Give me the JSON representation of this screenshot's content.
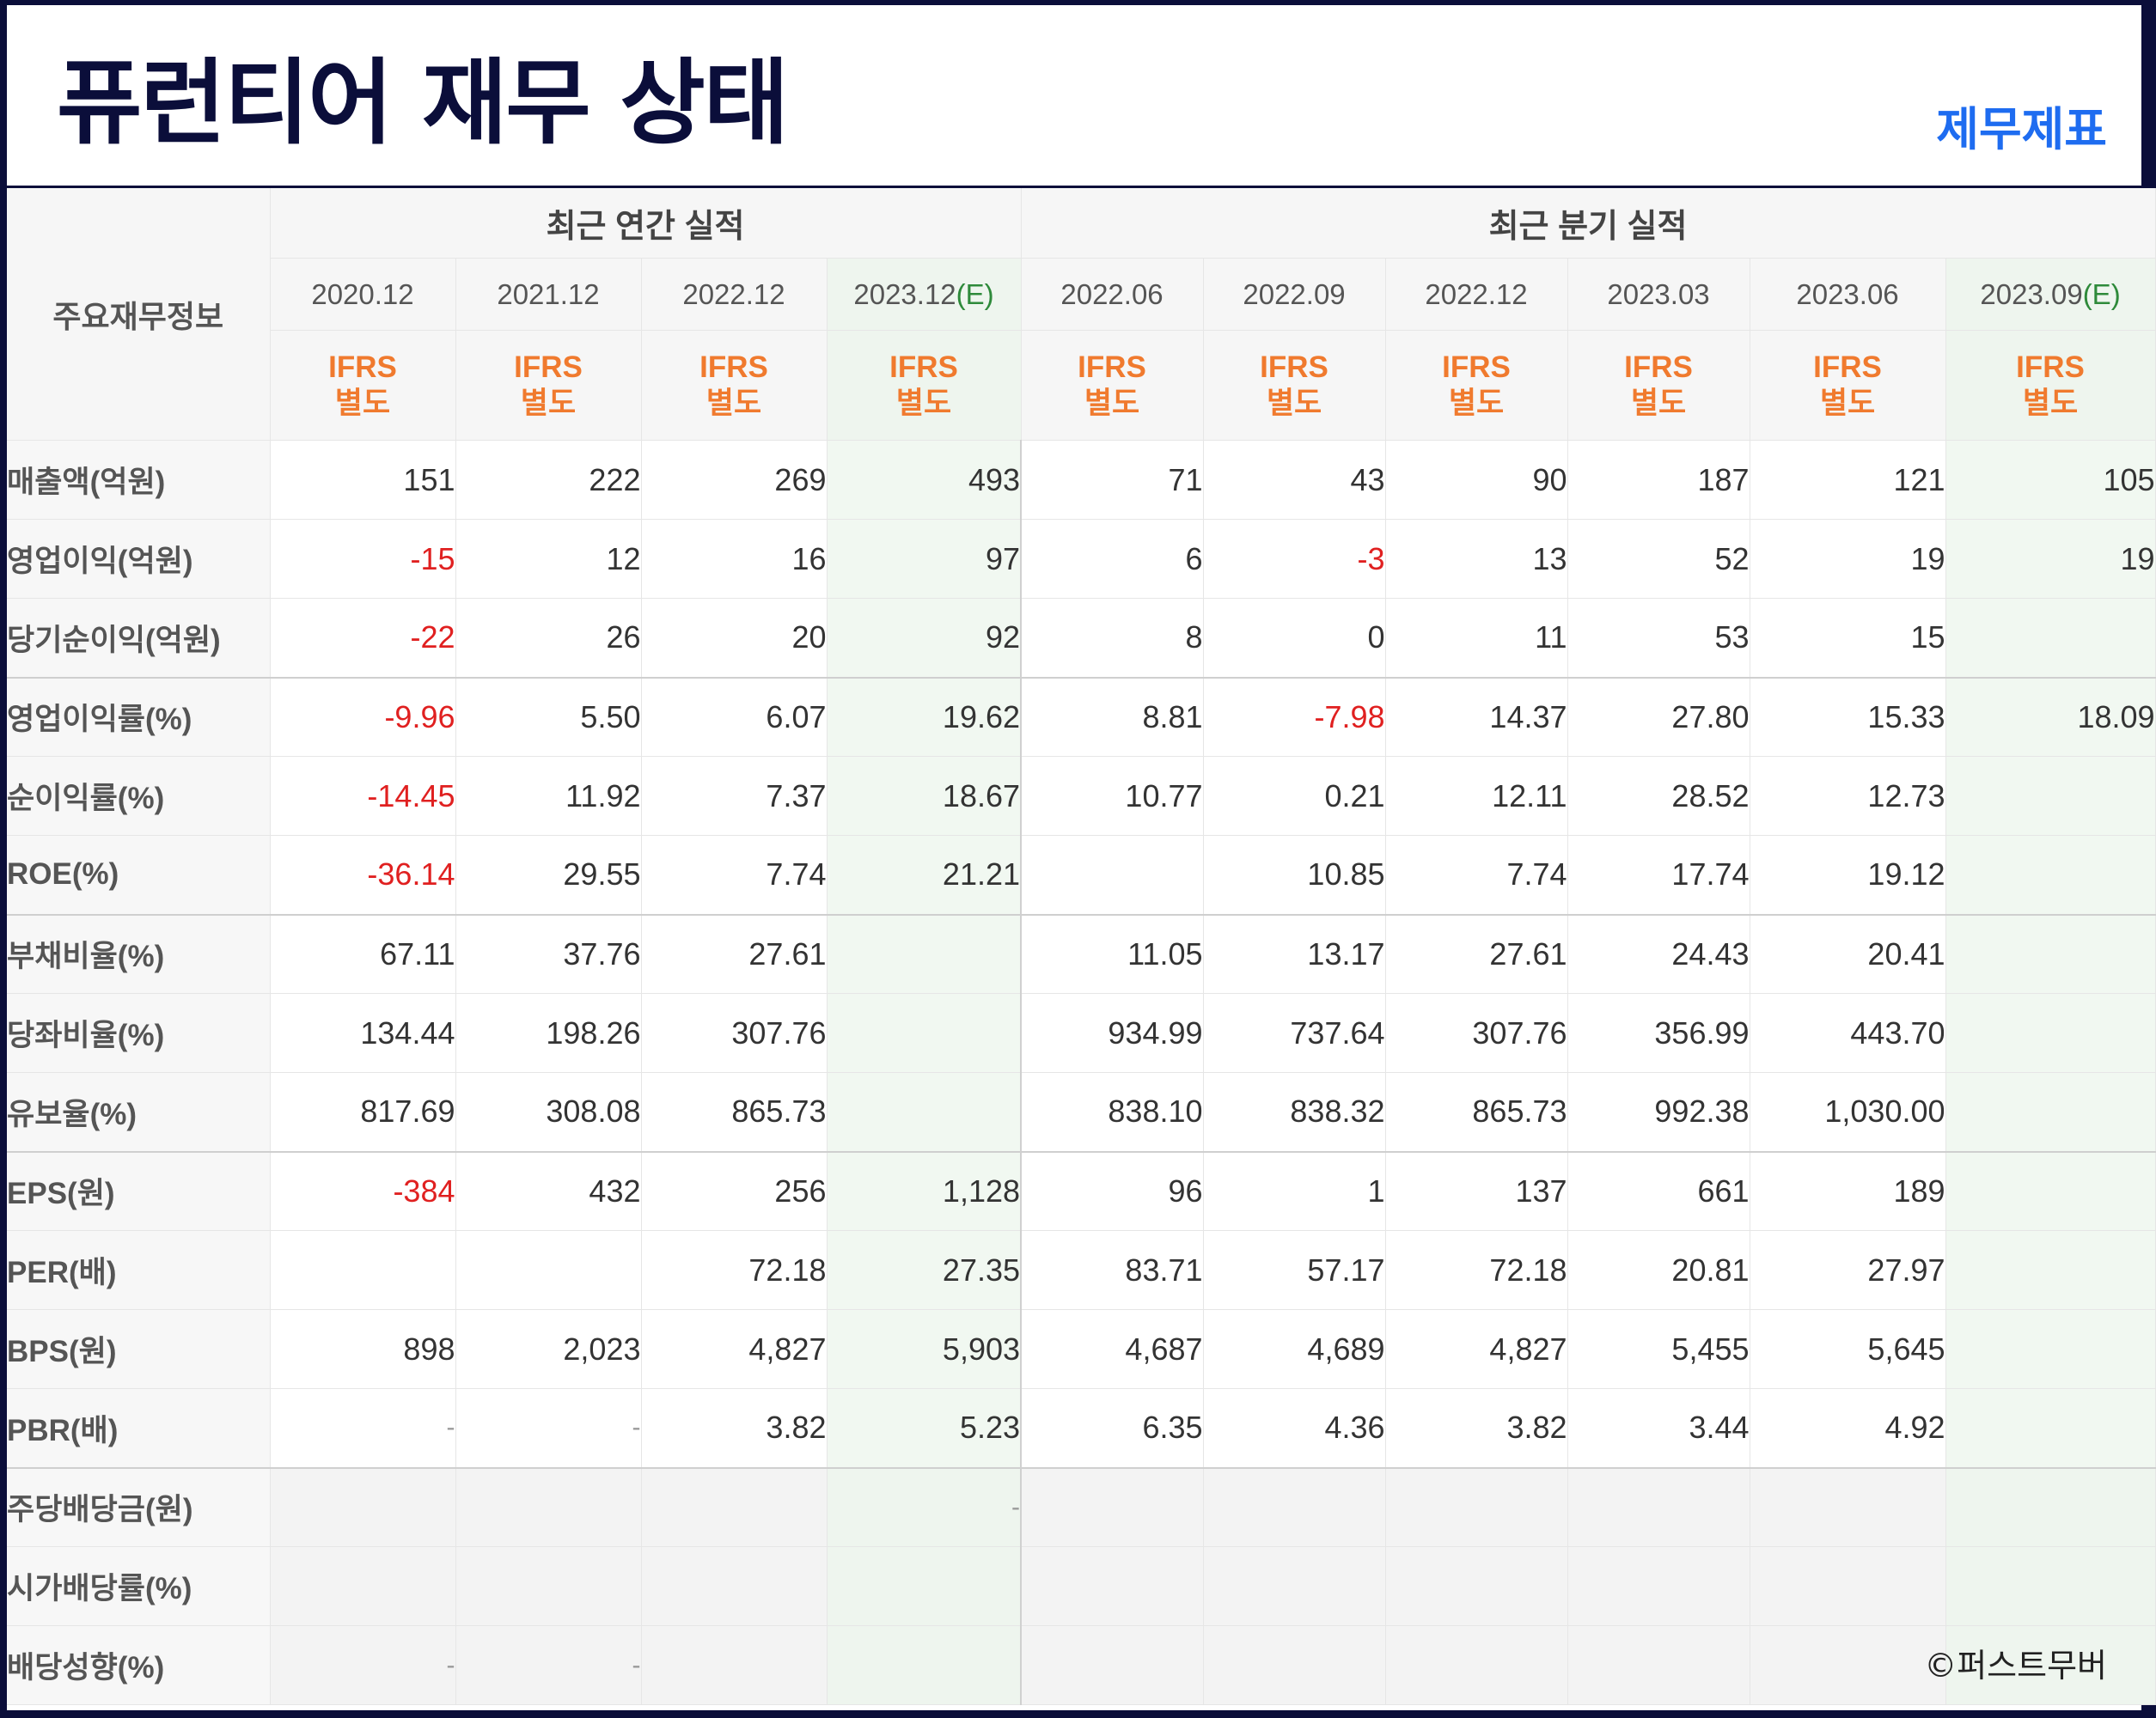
{
  "title": "퓨런티어 재무 상태",
  "brand": "제무제표",
  "copyright": "©퍼스트무버",
  "header": {
    "main_label": "주요재무정보",
    "annual_group": "최근 연간 실적",
    "quarter_group": "최근 분기 실적",
    "estimate_marker": "(E)",
    "type_line1": "IFRS",
    "type_line2": "별도"
  },
  "columns": [
    {
      "date": "2020.12",
      "est": false
    },
    {
      "date": "2021.12",
      "est": false
    },
    {
      "date": "2022.12",
      "est": false
    },
    {
      "date": "2023.12",
      "est": true
    },
    {
      "date": "2022.06",
      "est": false
    },
    {
      "date": "2022.09",
      "est": false
    },
    {
      "date": "2022.12",
      "est": false
    },
    {
      "date": "2023.03",
      "est": false
    },
    {
      "date": "2023.06",
      "est": false
    },
    {
      "date": "2023.09",
      "est": true
    }
  ],
  "rows": [
    {
      "label": "매출액(억원)",
      "values": [
        "151",
        "222",
        "269",
        "493",
        "71",
        "43",
        "90",
        "187",
        "121",
        "105"
      ]
    },
    {
      "label": "영업이익(억원)",
      "values": [
        "-15",
        "12",
        "16",
        "97",
        "6",
        "-3",
        "13",
        "52",
        "19",
        "19"
      ]
    },
    {
      "label": "당기순이익(억원)",
      "values": [
        "-22",
        "26",
        "20",
        "92",
        "8",
        "0",
        "11",
        "53",
        "15",
        ""
      ]
    },
    {
      "label": "영업이익률(%)",
      "values": [
        "-9.96",
        "5.50",
        "6.07",
        "19.62",
        "8.81",
        "-7.98",
        "14.37",
        "27.80",
        "15.33",
        "18.09"
      ]
    },
    {
      "label": "순이익률(%)",
      "values": [
        "-14.45",
        "11.92",
        "7.37",
        "18.67",
        "10.77",
        "0.21",
        "12.11",
        "28.52",
        "12.73",
        ""
      ]
    },
    {
      "label": "ROE(%)",
      "values": [
        "-36.14",
        "29.55",
        "7.74",
        "21.21",
        "",
        "10.85",
        "7.74",
        "17.74",
        "19.12",
        ""
      ]
    },
    {
      "label": "부채비율(%)",
      "values": [
        "67.11",
        "37.76",
        "27.61",
        "",
        "11.05",
        "13.17",
        "27.61",
        "24.43",
        "20.41",
        ""
      ]
    },
    {
      "label": "당좌비율(%)",
      "values": [
        "134.44",
        "198.26",
        "307.76",
        "",
        "934.99",
        "737.64",
        "307.76",
        "356.99",
        "443.70",
        ""
      ]
    },
    {
      "label": "유보율(%)",
      "values": [
        "817.69",
        "308.08",
        "865.73",
        "",
        "838.10",
        "838.32",
        "865.73",
        "992.38",
        "1,030.00",
        ""
      ]
    },
    {
      "label": "EPS(원)",
      "values": [
        "-384",
        "432",
        "256",
        "1,128",
        "96",
        "1",
        "137",
        "661",
        "189",
        ""
      ]
    },
    {
      "label": "PER(배)",
      "values": [
        "",
        "",
        "72.18",
        "27.35",
        "83.71",
        "57.17",
        "72.18",
        "20.81",
        "27.97",
        ""
      ]
    },
    {
      "label": "BPS(원)",
      "values": [
        "898",
        "2,023",
        "4,827",
        "5,903",
        "4,687",
        "4,689",
        "4,827",
        "5,455",
        "5,645",
        ""
      ]
    },
    {
      "label": "PBR(배)",
      "values": [
        "-",
        "-",
        "3.82",
        "5.23",
        "6.35",
        "4.36",
        "3.82",
        "3.44",
        "4.92",
        ""
      ]
    },
    {
      "label": "주당배당금(원)",
      "values": [
        "",
        "",
        "",
        "-",
        "",
        "",
        "",
        "",
        "",
        ""
      ]
    },
    {
      "label": "시가배당률(%)",
      "values": [
        "",
        "",
        "",
        "",
        "",
        "",
        "",
        "",
        "",
        ""
      ]
    },
    {
      "label": "배당성향(%)",
      "values": [
        "-",
        "-",
        "",
        "",
        "",
        "",
        "",
        "",
        "",
        ""
      ]
    }
  ]
}
